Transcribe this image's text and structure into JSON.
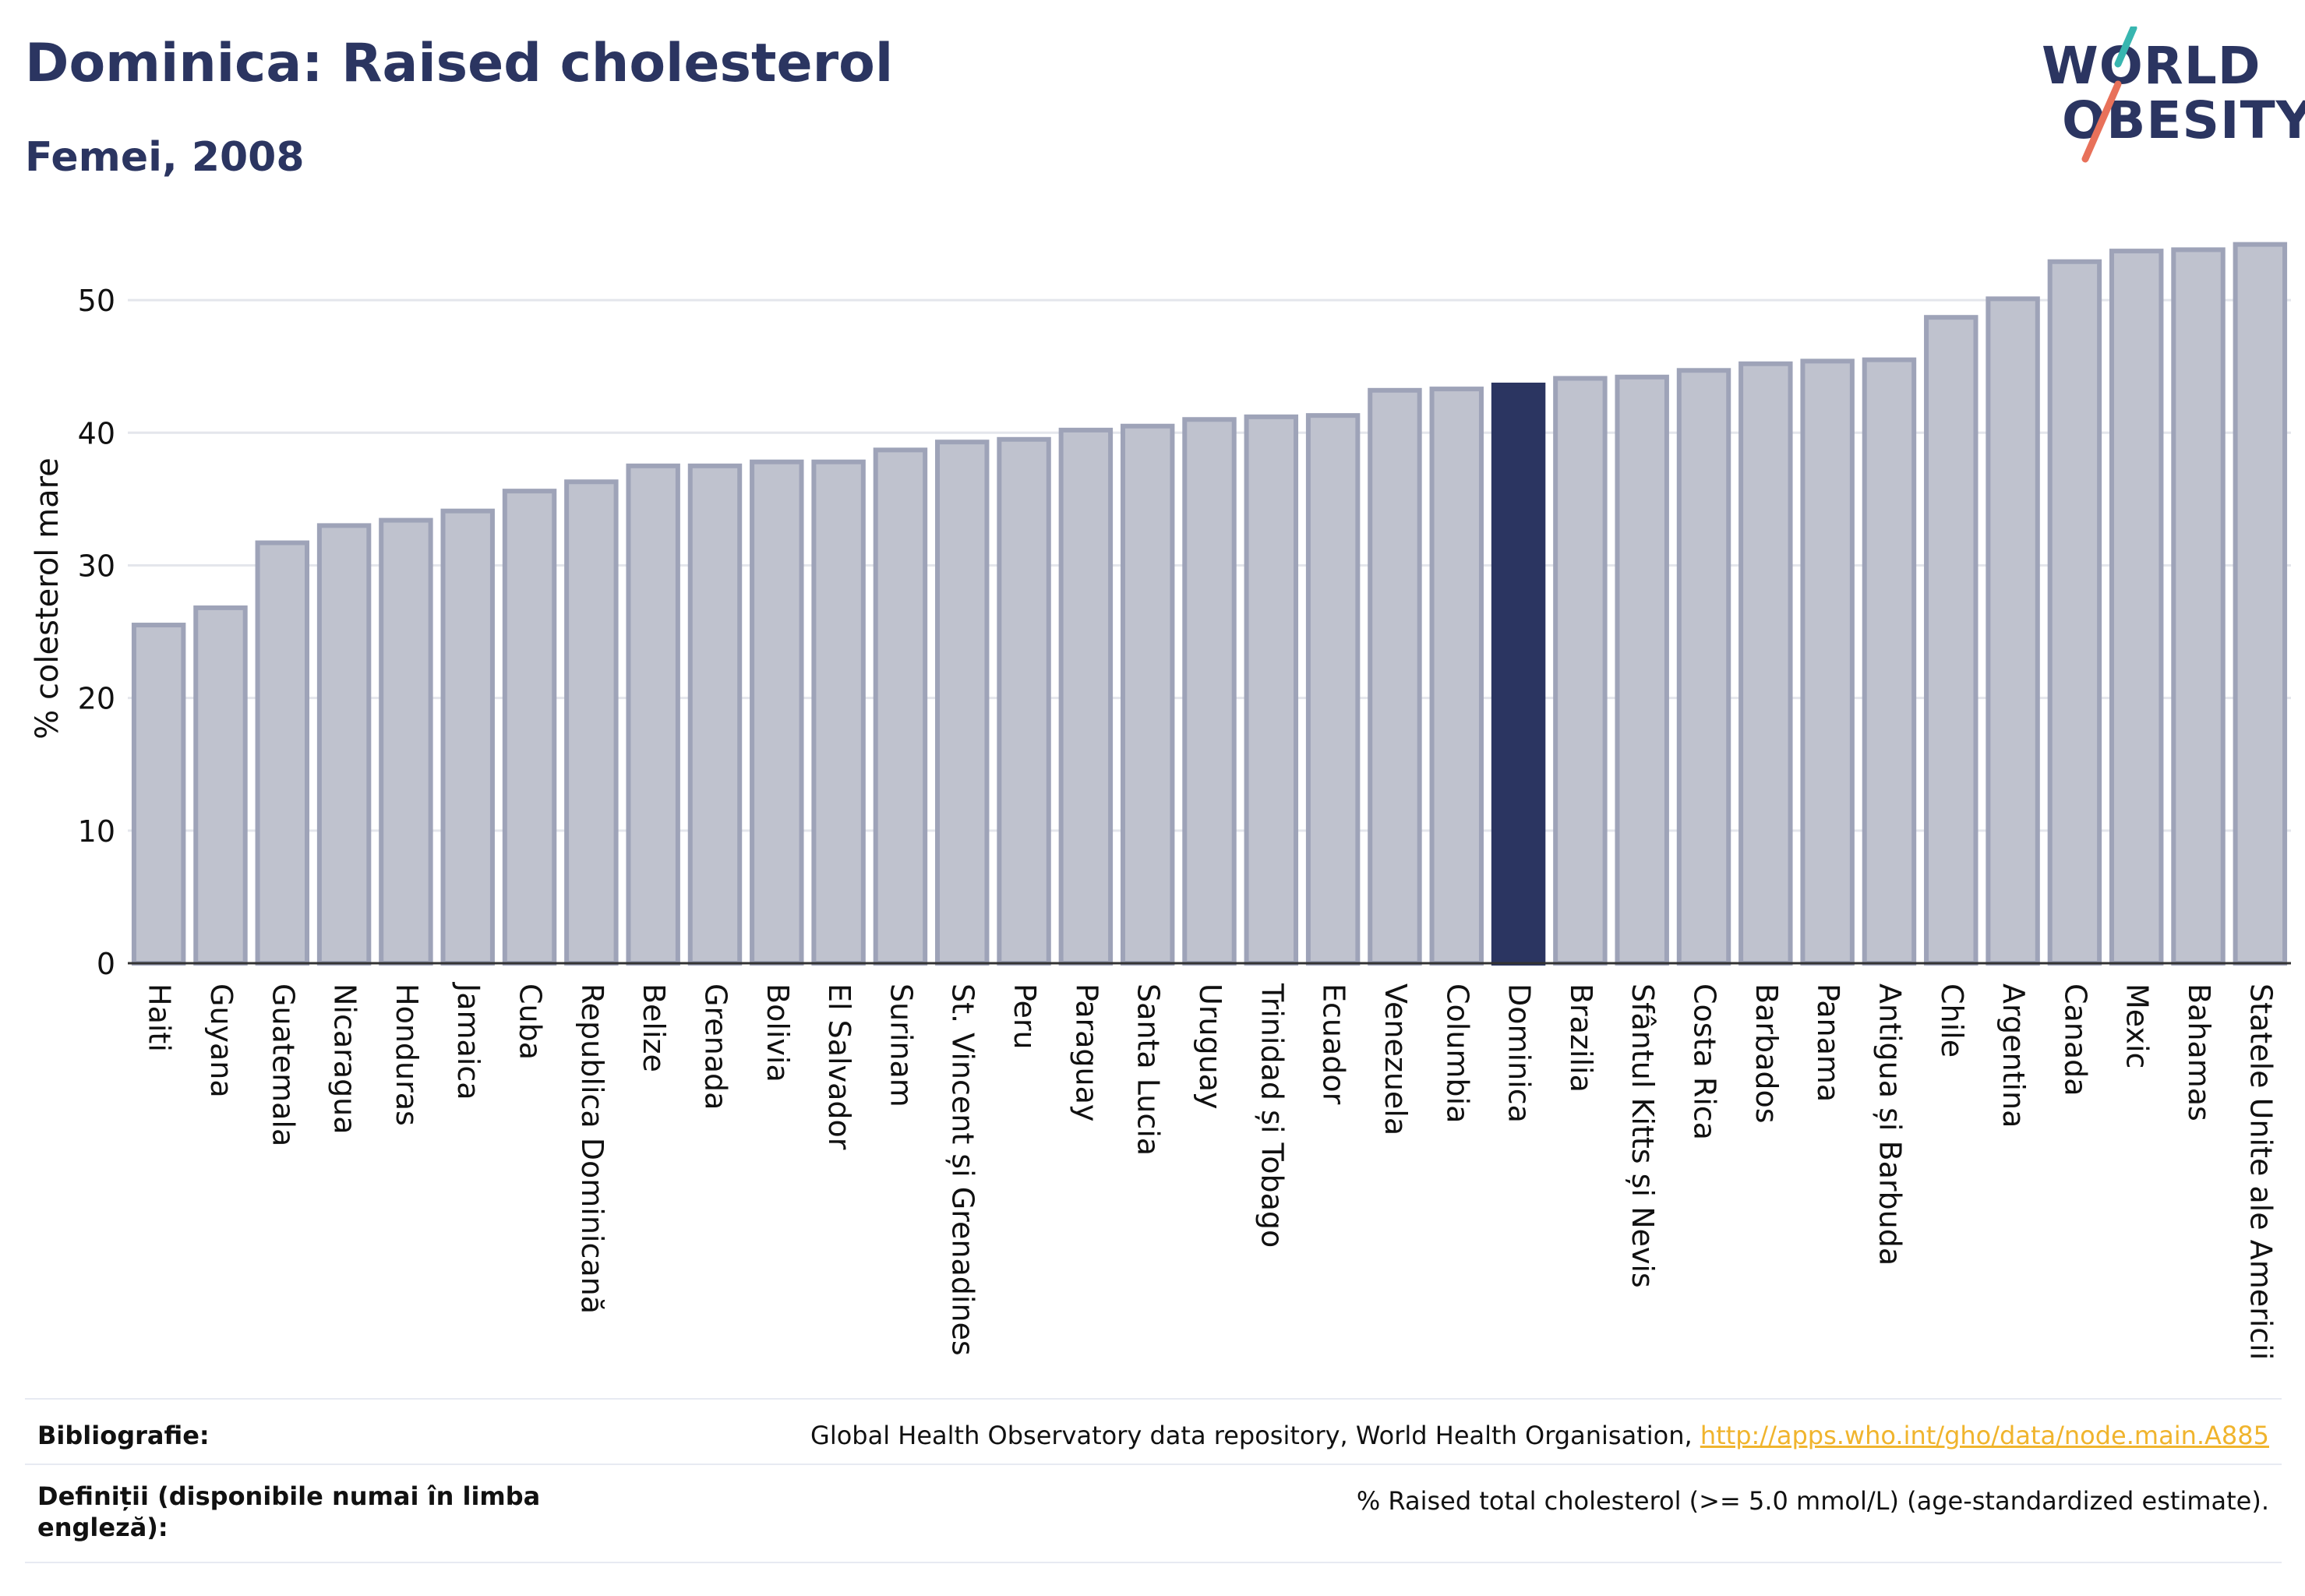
{
  "header": {
    "title": "Dominica: Raised cholesterol",
    "subtitle": "Femei, 2008"
  },
  "logo": {
    "line1": "WORLD",
    "line2": "OBESITY",
    "slash_colors": [
      "#38b6b0",
      "#e8715a"
    ]
  },
  "colors": {
    "bar": "#bfc2ce",
    "bar_border": "#9ea3b8",
    "highlight": "#2b3561",
    "grid": "#e4e6ec",
    "axis": "#333333"
  },
  "chart_data": {
    "type": "bar",
    "title": "Dominica: Raised cholesterol",
    "subtitle": "Femei, 2008",
    "xlabel": "",
    "ylabel": "% colesterol mare",
    "ylim": [
      0,
      55
    ],
    "yticks": [
      0,
      10,
      20,
      30,
      40,
      50
    ],
    "grid": true,
    "highlight": "Dominica",
    "categories": [
      "Haiti",
      "Guyana",
      "Guatemala",
      "Nicaragua",
      "Honduras",
      "Jamaica",
      "Cuba",
      "Republica Dominicană",
      "Belize",
      "Grenada",
      "Bolivia",
      "El Salvador",
      "Surinam",
      "St. Vincent și Grenadines",
      "Peru",
      "Paraguay",
      "Santa Lucia",
      "Uruguay",
      "Trinidad și Tobago",
      "Ecuador",
      "Venezuela",
      "Columbia",
      "Dominica",
      "Brazilia",
      "Sfântul Kitts și Nevis",
      "Costa Rica",
      "Barbados",
      "Panama",
      "Antigua și Barbuda",
      "Chile",
      "Argentina",
      "Canada",
      "Mexic",
      "Bahamas",
      "Statele Unite ale Americii"
    ],
    "values": [
      25.5,
      26.8,
      31.7,
      33.0,
      33.4,
      34.1,
      35.6,
      36.3,
      37.5,
      37.5,
      37.8,
      37.8,
      38.7,
      39.3,
      39.5,
      40.2,
      40.5,
      41.0,
      41.2,
      41.3,
      43.2,
      43.3,
      43.6,
      44.1,
      44.2,
      44.7,
      45.2,
      45.4,
      45.5,
      48.7,
      50.1,
      52.9,
      53.7,
      53.8,
      54.2
    ]
  },
  "footer": {
    "bibliography_label": "Bibliografie:",
    "bibliography_text": "Global Health Observatory data repository, World Health Organisation, ",
    "bibliography_link": "http://apps.who.int/gho/data/node.main.A885",
    "definitions_label": "Definiții (disponibile numai în limba engleză):",
    "definitions_text": "% Raised total cholesterol (>= 5.0 mmol/L) (age-standardized estimate)."
  }
}
